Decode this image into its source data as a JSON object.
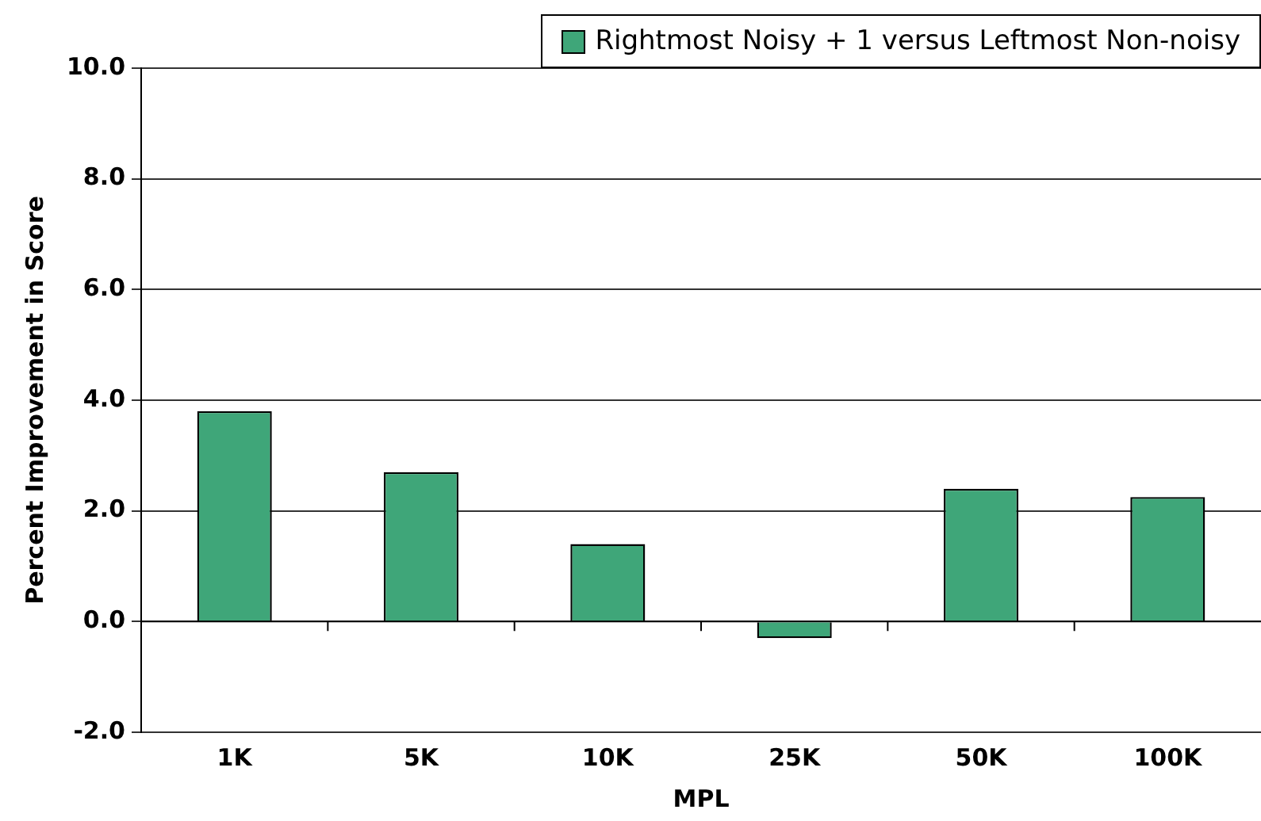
{
  "chart_data": {
    "type": "bar",
    "xlabel": "MPL",
    "ylabel": "Percent Improvement in Score",
    "categories": [
      "1K",
      "5K",
      "10K",
      "25K",
      "50K",
      "100K"
    ],
    "series": [
      {
        "name": "Rightmost Noisy + 1 versus Leftmost Non-noisy",
        "color": "#3fa679",
        "values": [
          3.8,
          2.7,
          1.4,
          -0.3,
          2.4,
          2.25
        ]
      }
    ],
    "ylim": [
      -2,
      10
    ],
    "yticks": [
      {
        "value": -2,
        "label": "-2.0"
      },
      {
        "value": 0,
        "label": "0.0"
      },
      {
        "value": 2,
        "label": "2.0"
      },
      {
        "value": 4,
        "label": "4.0"
      },
      {
        "value": 6,
        "label": "6.0"
      },
      {
        "value": 8,
        "label": "8.0"
      },
      {
        "value": 10,
        "label": "10.0"
      }
    ],
    "grid": "y",
    "legend": "top right"
  }
}
